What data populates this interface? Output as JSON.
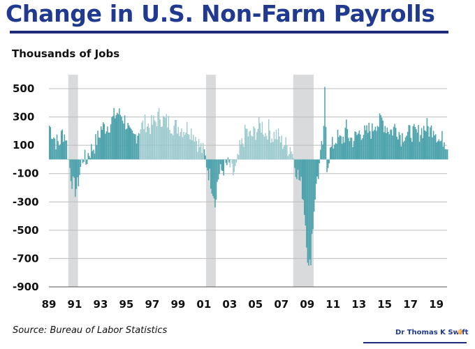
{
  "title": "Change in U.S. Non-Farm Payrolls",
  "subtitle": "Thousands of Jobs",
  "source": "Source: Bureau of Labor Statistics",
  "author": "Dr Thomas K Swift",
  "colors": {
    "title": "#1f3a8f",
    "bar_solid": "#4ea3ad",
    "bar_light": "#a8d2d6",
    "recession_shade": "#d9dadb",
    "grid": "#bcbcbc"
  },
  "chart_data": {
    "type": "bar",
    "title": "Change in U.S. Non-Farm Payrolls",
    "ylabel": "Thousands of Jobs",
    "xlabel": "",
    "x_range": [
      1989.0,
      2019.83
    ],
    "ylim": [
      -900,
      500
    ],
    "y_ticks": [
      "500",
      "300",
      "100",
      "-100",
      "-300",
      "-500",
      "-700",
      "-900"
    ],
    "y_tick_values": [
      500,
      300,
      100,
      -100,
      -300,
      -500,
      -700,
      -900
    ],
    "x_ticks": [
      "89",
      "91",
      "93",
      "95",
      "97",
      "99",
      "01",
      "03",
      "05",
      "07",
      "09",
      "11",
      "13",
      "15",
      "17",
      "19"
    ],
    "x_tick_values": [
      1989,
      1991,
      1993,
      1995,
      1997,
      1999,
      2001,
      2003,
      2005,
      2007,
      2009,
      2011,
      2013,
      2015,
      2017,
      2019
    ],
    "grid": true,
    "recessions": [
      {
        "start": 1990.5,
        "end": 1991.25
      },
      {
        "start": 2001.17,
        "end": 2001.92
      },
      {
        "start": 2007.92,
        "end": 2009.5
      }
    ],
    "light_periods": [
      {
        "start": 1995.92,
        "end": 2000.92
      },
      {
        "start": 2002.92,
        "end": 2007.92
      }
    ],
    "bar_width_years": 0.0833,
    "series": [
      {
        "points": [
          [
            1989.0,
            240
          ],
          [
            1989.25,
            180
          ],
          [
            1989.5,
            130
          ],
          [
            1989.75,
            110
          ],
          [
            1990.0,
            190
          ],
          [
            1990.25,
            170
          ],
          [
            1990.5,
            -10
          ],
          [
            1990.67,
            -110
          ],
          [
            1990.83,
            -180
          ],
          [
            1991.0,
            -210
          ],
          [
            1991.17,
            -190
          ],
          [
            1991.33,
            -100
          ],
          [
            1991.5,
            -20
          ],
          [
            1991.67,
            30
          ],
          [
            1991.83,
            -30
          ],
          [
            1992.0,
            40
          ],
          [
            1992.17,
            60
          ],
          [
            1992.33,
            80
          ],
          [
            1992.5,
            100
          ],
          [
            1992.67,
            140
          ],
          [
            1992.83,
            160
          ],
          [
            1993.0,
            220
          ],
          [
            1993.25,
            230
          ],
          [
            1993.5,
            240
          ],
          [
            1993.75,
            260
          ],
          [
            1994.0,
            300
          ],
          [
            1994.25,
            330
          ],
          [
            1994.5,
            320
          ],
          [
            1994.75,
            290
          ],
          [
            1995.0,
            250
          ],
          [
            1995.25,
            160
          ],
          [
            1995.5,
            150
          ],
          [
            1995.75,
            180
          ],
          [
            1996.0,
            220
          ],
          [
            1996.25,
            240
          ],
          [
            1996.5,
            260
          ],
          [
            1996.75,
            230
          ],
          [
            1997.0,
            250
          ],
          [
            1997.25,
            270
          ],
          [
            1997.5,
            320
          ],
          [
            1997.75,
            280
          ],
          [
            1998.0,
            270
          ],
          [
            1998.25,
            260
          ],
          [
            1998.5,
            240
          ],
          [
            1998.75,
            230
          ],
          [
            1999.0,
            230
          ],
          [
            1999.25,
            220
          ],
          [
            1999.5,
            210
          ],
          [
            1999.75,
            230
          ],
          [
            2000.0,
            200
          ],
          [
            2000.25,
            180
          ],
          [
            2000.5,
            120
          ],
          [
            2000.75,
            80
          ],
          [
            2001.0,
            40
          ],
          [
            2001.25,
            -60
          ],
          [
            2001.5,
            -150
          ],
          [
            2001.75,
            -250
          ],
          [
            2001.92,
            -300
          ],
          [
            2002.0,
            -140
          ],
          [
            2002.25,
            -90
          ],
          [
            2002.5,
            -60
          ],
          [
            2002.75,
            -40
          ],
          [
            2003.0,
            -50
          ],
          [
            2003.25,
            -100
          ],
          [
            2003.5,
            -60
          ],
          [
            2003.75,
            70
          ],
          [
            2004.0,
            120
          ],
          [
            2004.25,
            210
          ],
          [
            2004.5,
            160
          ],
          [
            2004.75,
            170
          ],
          [
            2005.0,
            200
          ],
          [
            2005.25,
            230
          ],
          [
            2005.5,
            240
          ],
          [
            2005.75,
            180
          ],
          [
            2006.0,
            220
          ],
          [
            2006.25,
            160
          ],
          [
            2006.5,
            180
          ],
          [
            2006.75,
            160
          ],
          [
            2007.0,
            120
          ],
          [
            2007.25,
            110
          ],
          [
            2007.5,
            80
          ],
          [
            2007.75,
            90
          ],
          [
            2008.0,
            -40
          ],
          [
            2008.17,
            -80
          ],
          [
            2008.33,
            -140
          ],
          [
            2008.5,
            -180
          ],
          [
            2008.67,
            -280
          ],
          [
            2008.83,
            -460
          ],
          [
            2009.0,
            -700
          ],
          [
            2009.08,
            -780
          ],
          [
            2009.17,
            -740
          ],
          [
            2009.25,
            -690
          ],
          [
            2009.33,
            -520
          ],
          [
            2009.42,
            -460
          ],
          [
            2009.5,
            -340
          ],
          [
            2009.58,
            -240
          ],
          [
            2009.67,
            -200
          ],
          [
            2009.75,
            -110
          ],
          [
            2009.83,
            -100
          ],
          [
            2010.0,
            20
          ],
          [
            2010.25,
            180
          ],
          [
            2010.33,
            500
          ],
          [
            2010.5,
            -60
          ],
          [
            2010.67,
            30
          ],
          [
            2010.83,
            80
          ],
          [
            2011.0,
            110
          ],
          [
            2011.25,
            160
          ],
          [
            2011.5,
            130
          ],
          [
            2011.75,
            150
          ],
          [
            2012.0,
            220
          ],
          [
            2012.25,
            150
          ],
          [
            2012.5,
            140
          ],
          [
            2012.75,
            160
          ],
          [
            2013.0,
            190
          ],
          [
            2013.25,
            200
          ],
          [
            2013.5,
            170
          ],
          [
            2013.75,
            210
          ],
          [
            2014.0,
            200
          ],
          [
            2014.25,
            270
          ],
          [
            2014.5,
            250
          ],
          [
            2014.75,
            280
          ],
          [
            2015.0,
            240
          ],
          [
            2015.25,
            220
          ],
          [
            2015.5,
            200
          ],
          [
            2015.75,
            230
          ],
          [
            2016.0,
            210
          ],
          [
            2016.25,
            160
          ],
          [
            2016.5,
            190
          ],
          [
            2016.75,
            170
          ],
          [
            2017.0,
            200
          ],
          [
            2017.25,
            180
          ],
          [
            2017.5,
            180
          ],
          [
            2017.75,
            200
          ],
          [
            2018.0,
            220
          ],
          [
            2018.25,
            230
          ],
          [
            2018.5,
            200
          ],
          [
            2018.75,
            240
          ],
          [
            2019.0,
            180
          ],
          [
            2019.25,
            120
          ],
          [
            2019.5,
            150
          ],
          [
            2019.75,
            120
          ]
        ]
      }
    ]
  }
}
